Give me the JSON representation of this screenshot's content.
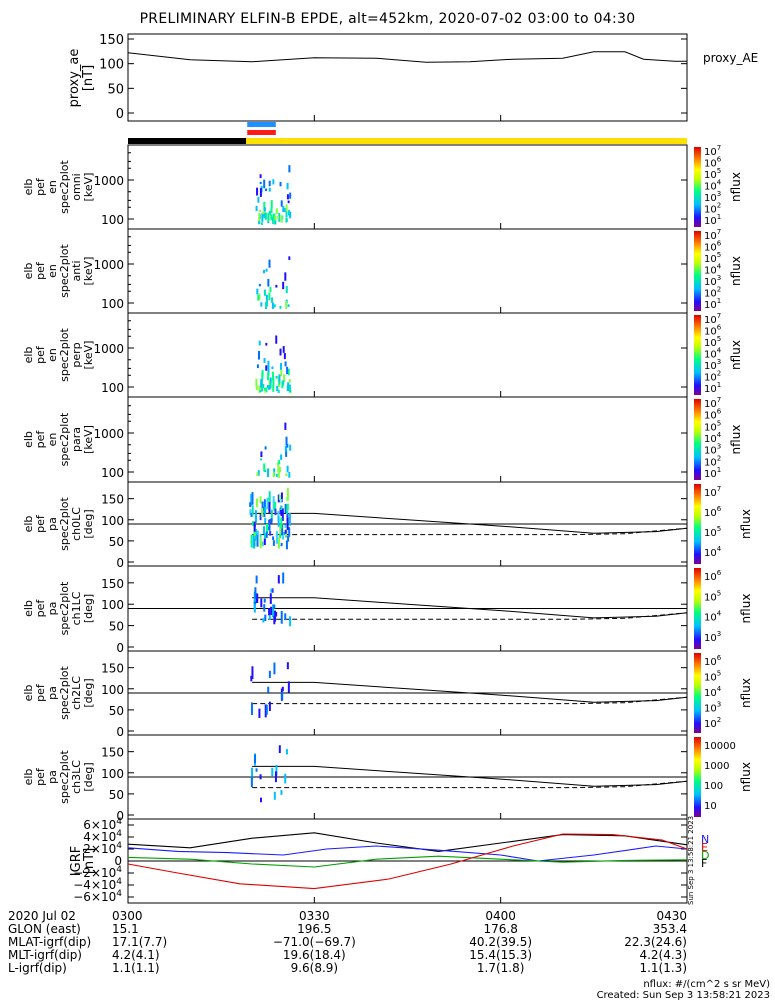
{
  "title": "PRELIMINARY ELFIN-B EPDE, alt=452km, 2020-07-02 03:00 to 04:30",
  "chart_data": {
    "type": "line",
    "time_range": [
      "03:00",
      "04:30"
    ],
    "panels": [
      {
        "id": "proxy_ae",
        "ylabel": "proxy_ae\n[nT]",
        "right_label": "proxy_AE",
        "yticks": [
          "150",
          "100",
          "50",
          "0"
        ],
        "ylim": [
          0,
          150
        ],
        "series": [
          {
            "name": "proxy_AE",
            "x_min": [
              0,
              10,
              20,
              30,
              40,
              48,
              55,
              62,
              70,
              75,
              80,
              83,
              88,
              90
            ],
            "values": [
              122,
              108,
              104,
              112,
              111,
              103,
              104,
              109,
              111,
              124,
              124,
              109,
              105,
              105
            ]
          }
        ]
      },
      {
        "id": "omni",
        "ylabel": "elb\npef\nen\nspec2plot\nomni\n[keV]",
        "yticks": [
          "1000",
          "100"
        ],
        "colorbar": {
          "ticks": [
            "10^7",
            "10^6",
            "10^5",
            "10^4",
            "10^3",
            "10^2",
            "10^1"
          ],
          "label": "nflux"
        }
      },
      {
        "id": "anti",
        "ylabel": "elb\npef\nen\nspec2plot\nanti\n[keV]",
        "yticks": [
          "1000",
          "100"
        ],
        "colorbar": {
          "ticks": [
            "10^7",
            "10^6",
            "10^5",
            "10^4",
            "10^3",
            "10^2",
            "10^1"
          ],
          "label": "nflux"
        }
      },
      {
        "id": "perp",
        "ylabel": "elb\npef\nen\nspec2plot\nperp\n[keV]",
        "yticks": [
          "1000",
          "100"
        ],
        "colorbar": {
          "ticks": [
            "10^7",
            "10^6",
            "10^5",
            "10^4",
            "10^3",
            "10^2",
            "10^1"
          ],
          "label": "nflux"
        }
      },
      {
        "id": "para",
        "ylabel": "elb\npef\nen\nspec2plot\npara\n[keV]",
        "yticks": [
          "1000",
          "100"
        ],
        "colorbar": {
          "ticks": [
            "10^7",
            "10^6",
            "10^5",
            "10^4",
            "10^3",
            "10^2",
            "10^1"
          ],
          "label": "nflux"
        }
      },
      {
        "id": "ch0LC",
        "ylabel": "elb\npef\npa\nspec2plot\nch0LC\n[deg]",
        "yticks": [
          "150",
          "100",
          "50",
          "0"
        ],
        "colorbar": {
          "ticks": [
            "10^7",
            "10^6",
            "10^5",
            "10^4"
          ],
          "label": "nflux"
        }
      },
      {
        "id": "ch1LC",
        "ylabel": "elb\npef\npa\nspec2plot\nch1LC\n[deg]",
        "yticks": [
          "150",
          "100",
          "50",
          "0"
        ],
        "colorbar": {
          "ticks": [
            "10^6",
            "10^5",
            "10^4",
            "10^3"
          ],
          "label": "nflux"
        }
      },
      {
        "id": "ch2LC",
        "ylabel": "elb\npef\npa\nspec2plot\nch2LC\n[deg]",
        "yticks": [
          "150",
          "100",
          "50",
          "0"
        ],
        "colorbar": {
          "ticks": [
            "10^6",
            "10^5",
            "10^4",
            "10^3",
            "10^2"
          ],
          "label": "nflux"
        }
      },
      {
        "id": "ch3LC",
        "ylabel": "elb\npef\npa\nspec2plot\nch3LC\n[deg]",
        "yticks": [
          "150",
          "100",
          "50",
          "0"
        ],
        "colorbar": {
          "ticks": [
            "10000",
            "1000",
            "100",
            "10"
          ],
          "label": "nflux"
        }
      },
      {
        "id": "igrf",
        "ylabel": "IGRF\n[nT]",
        "yticks": [
          "6×10^4",
          "4×10^4",
          "2×10^4",
          "0",
          "−2×10^4",
          "−4×10^4",
          "−6×10^4"
        ],
        "ylim": [
          -60000,
          60000
        ],
        "legend": [
          "N",
          "E",
          "D",
          "F"
        ]
      }
    ],
    "footer": {
      "rows": [
        {
          "label": "2020 Jul 02",
          "values": [
            "0300",
            "0330",
            "0400",
            "0430"
          ]
        },
        {
          "label": "GLON (east)",
          "values": [
            "15.1",
            "196.5",
            "176.8",
            "353.4"
          ]
        },
        {
          "label": "MLAT-igrf(dip)",
          "values": [
            "17.1(7.7)",
            "−71.0(−69.7)",
            "40.2(39.5)",
            "22.3(24.6)"
          ]
        },
        {
          "label": "MLT-igrf(dip)",
          "values": [
            "4.2(4.1)",
            "19.6(18.4)",
            "15.4(15.3)",
            "4.2(4.3)"
          ]
        },
        {
          "label": "L-igrf(dip)",
          "values": [
            "1.1(1.1)",
            "9.6(8.9)",
            "1.7(1.8)",
            "1.1(1.3)"
          ]
        }
      ],
      "unit_note": "nflux: #/(cm^2 s sr MeV)",
      "created": "Created: Sun Sep  3 13:58:21 2023",
      "side_stamp": "Sun Sep  3 13:58:21 2023"
    }
  },
  "colors": {
    "black_bar": "#000000",
    "yellow_bar": "#ffe000",
    "blue_mark": "#1f90ff",
    "red_mark": "#ff1a1a",
    "igrf_black": "#000000",
    "igrf_blue": "#1a1aff",
    "igrf_red": "#e00000",
    "igrf_green": "#00a000"
  }
}
